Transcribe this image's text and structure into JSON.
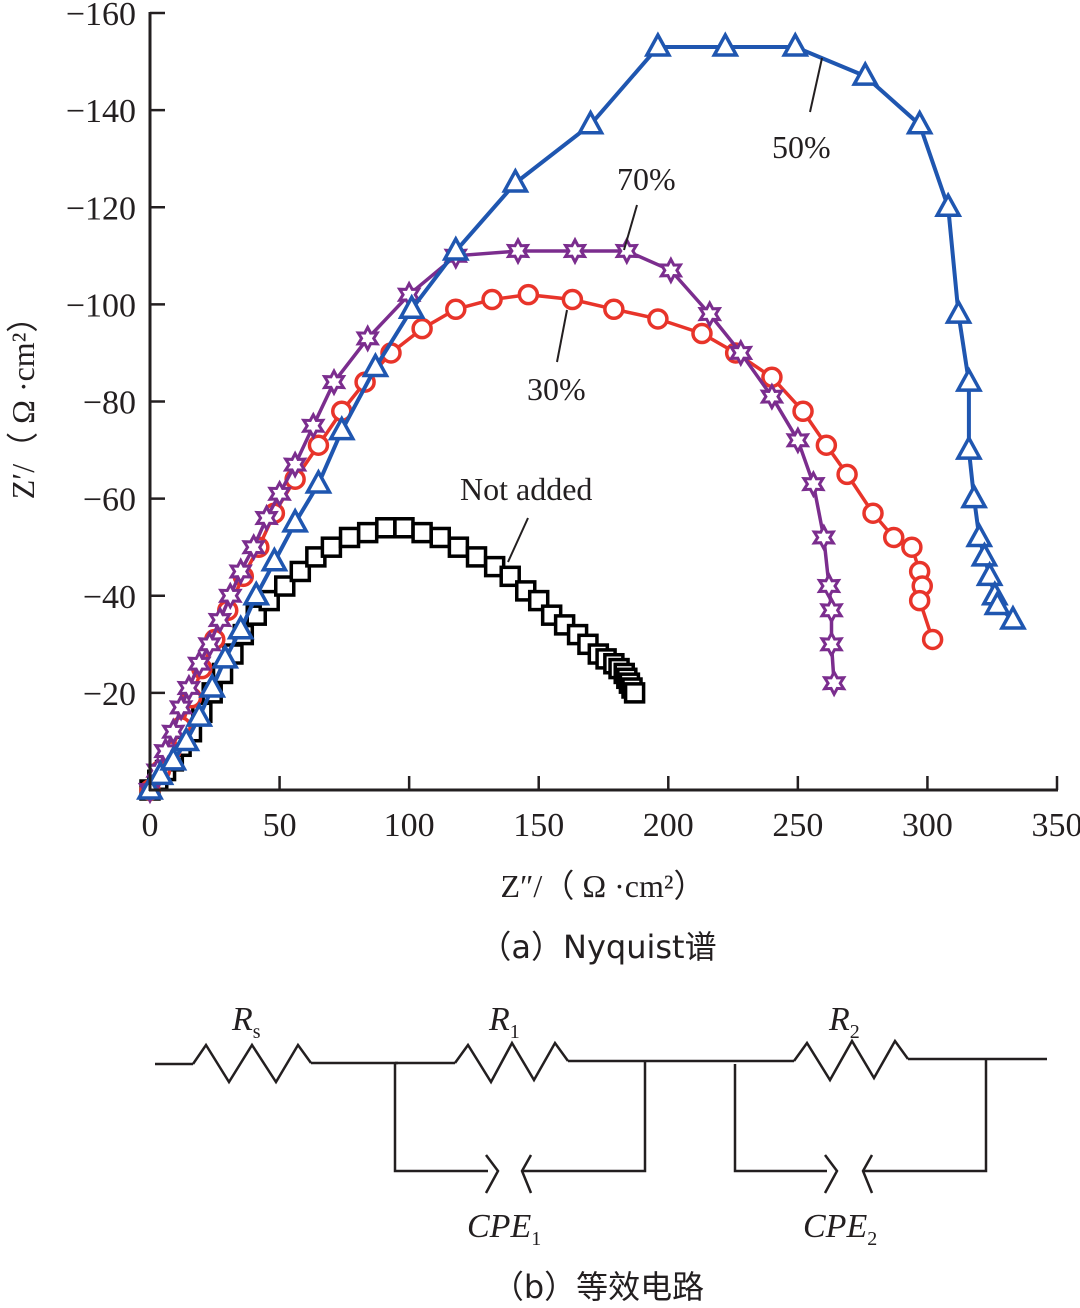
{
  "chart_data": {
    "type": "scatter",
    "title": "",
    "caption": "（a）Nyquist谱",
    "xlabel": "Z″/（ Ω ·cm²）",
    "ylabel": "Z′/（ Ω ·cm²）",
    "xlim": [
      0,
      350
    ],
    "ylim": [
      0,
      -160
    ],
    "x_ticks": [
      "0",
      "50",
      "100",
      "150",
      "200",
      "250",
      "300",
      "350"
    ],
    "x_tick_values": [
      0,
      50,
      100,
      150,
      200,
      250,
      300,
      350
    ],
    "y_ticks": [
      "−160",
      "−140",
      "−120",
      "−100",
      "−80",
      "−60",
      "−40",
      "−20"
    ],
    "y_tick_values": [
      -160,
      -140,
      -120,
      -100,
      -80,
      -60,
      -40,
      -20
    ],
    "grid": false,
    "series": [
      {
        "name": "Not added",
        "label": "Not added",
        "marker": "square",
        "color": "#000000",
        "x": [
          0,
          3,
          6,
          9,
          12,
          16,
          20,
          24,
          28,
          32,
          36,
          41,
          46,
          52,
          58,
          64,
          70,
          77,
          84,
          91,
          98,
          105,
          112,
          119,
          126,
          133,
          139,
          145,
          150,
          155,
          160,
          165,
          169,
          173,
          176,
          179,
          181,
          183,
          184,
          185,
          186,
          187
        ],
        "y": [
          0,
          -2,
          -4,
          -6,
          -9,
          -12,
          -16,
          -20,
          -24,
          -28,
          -32,
          -36,
          -39,
          -42,
          -45,
          -48,
          -50,
          -52,
          -53,
          -54,
          -54,
          -53,
          -52,
          -50,
          -48,
          -46,
          -44,
          -41,
          -39,
          -36,
          -34,
          -32,
          -30,
          -28,
          -27,
          -26,
          -25,
          -24,
          -23,
          -22,
          -21,
          -20
        ]
      },
      {
        "name": "30%",
        "label": "30%",
        "marker": "circle",
        "color": "#e8342a",
        "x": [
          0,
          4,
          8,
          12,
          16,
          20,
          25,
          30,
          36,
          42,
          48,
          56,
          65,
          74,
          83,
          93,
          105,
          118,
          132,
          146,
          163,
          179,
          196,
          213,
          226,
          240,
          252,
          261,
          269,
          279,
          287,
          294,
          297,
          298,
          297,
          302
        ],
        "y": [
          0,
          -4,
          -8,
          -13,
          -19,
          -25,
          -31,
          -37,
          -44,
          -50,
          -57,
          -64,
          -71,
          -78,
          -84,
          -90,
          -95,
          -99,
          -101,
          -102,
          -101,
          -99,
          -97,
          -94,
          -90,
          -85,
          -78,
          -71,
          -65,
          -57,
          -52,
          -50,
          -45,
          -42,
          -39,
          -31
        ]
      },
      {
        "name": "70%",
        "label": "70%",
        "marker": "star",
        "color": "#7b2d8e",
        "x": [
          0,
          3,
          6,
          9,
          12,
          15,
          19,
          23,
          27,
          31,
          35,
          40,
          45,
          50,
          56,
          63,
          71,
          84,
          100,
          118,
          142,
          164,
          184,
          201,
          216,
          228,
          240,
          250,
          256,
          260,
          262,
          263,
          263,
          264
        ],
        "y": [
          0,
          -4,
          -8,
          -12,
          -17,
          -21,
          -26,
          -30,
          -35,
          -40,
          -45,
          -50,
          -56,
          -61,
          -67,
          -75,
          -84,
          -93,
          -102,
          -110,
          -111,
          -111,
          -111,
          -107,
          -98,
          -90,
          -81,
          -72,
          -63,
          -52,
          -42,
          -37,
          -30,
          -22
        ]
      },
      {
        "name": "50%",
        "label": "50%",
        "marker": "triangle",
        "color": "#1f56b0",
        "x": [
          0,
          4,
          9,
          14,
          19,
          24,
          29,
          35,
          41,
          48,
          56,
          65,
          74,
          87,
          101,
          118,
          141,
          170,
          196,
          222,
          249,
          276,
          297,
          308,
          312,
          316,
          316,
          318,
          320,
          322,
          324,
          326,
          327,
          333
        ],
        "y": [
          0,
          -3,
          -6,
          -10,
          -15,
          -21,
          -27,
          -33,
          -40,
          -47,
          -55,
          -63,
          -74,
          -87,
          -99,
          -111,
          -125,
          -137,
          -153,
          -153,
          -153,
          -147,
          -137,
          -120,
          -98,
          -84,
          -70,
          -60,
          -52,
          -48,
          -44,
          -40,
          -38,
          -35
        ]
      }
    ]
  },
  "circuit": {
    "caption": "（b）等效电路",
    "components": [
      {
        "name": "R",
        "sub": "s"
      },
      {
        "name": "R",
        "sub": "1"
      },
      {
        "name": "R",
        "sub": "2"
      },
      {
        "name": "CPE",
        "sub": "1"
      },
      {
        "name": "CPE",
        "sub": "2"
      }
    ]
  }
}
